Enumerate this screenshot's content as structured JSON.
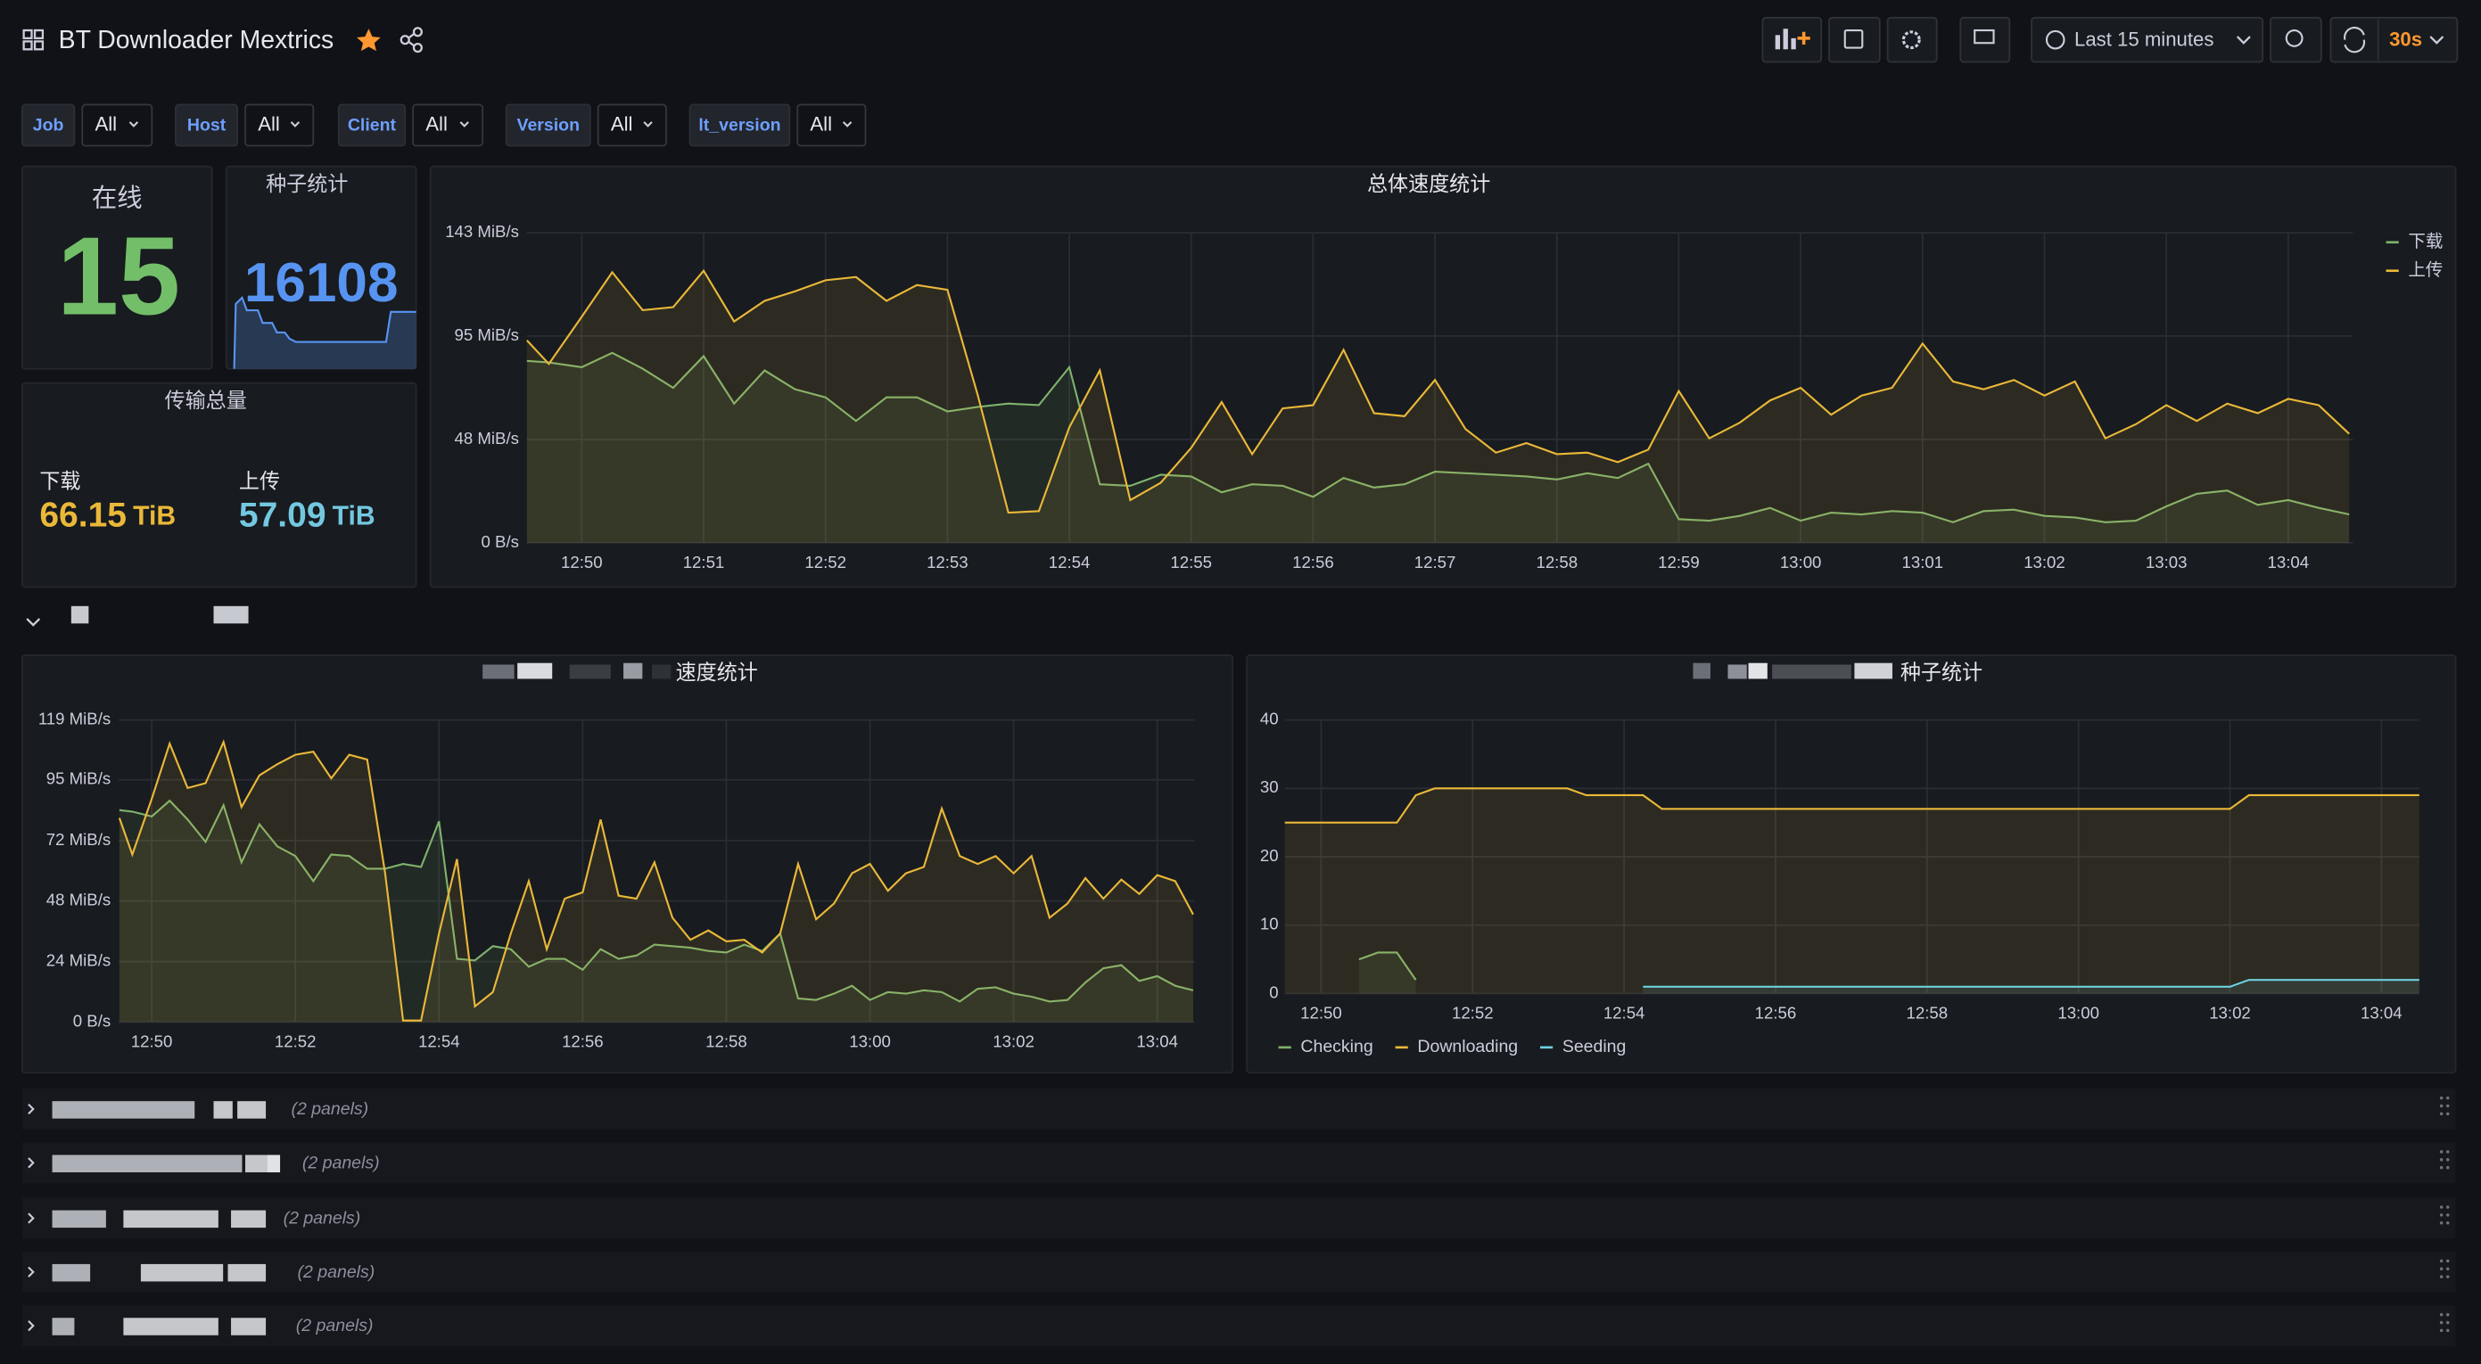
{
  "header": {
    "title": "BT Downloader Mextrics",
    "time_range": "Last 15 minutes",
    "refresh": "30s"
  },
  "variables": [
    {
      "label": "Job",
      "value": "All"
    },
    {
      "label": "Host",
      "value": "All"
    },
    {
      "label": "Client",
      "value": "All"
    },
    {
      "label": "Version",
      "value": "All"
    },
    {
      "label": "lt_version",
      "value": "All"
    }
  ],
  "stats": {
    "online": {
      "title": "在线",
      "value": 15
    },
    "torrents": {
      "title": "种子统计",
      "value": 16108
    },
    "transfer": {
      "title": "传输总量",
      "download": {
        "label": "下载",
        "value": 66.15,
        "unit": "TiB"
      },
      "upload": {
        "label": "上传",
        "value": 57.09,
        "unit": "TiB"
      }
    }
  },
  "chart_data": [
    {
      "type": "line",
      "title": "总体速度统计",
      "grid": true,
      "legend": "right",
      "x": [
        769.55,
        769.73,
        770,
        770.25,
        770.5,
        770.75,
        771,
        771.25,
        771.5,
        771.75,
        772,
        772.25,
        772.5,
        772.75,
        773,
        773.25,
        773.5,
        773.75,
        774,
        774.25,
        774.5,
        774.75,
        775,
        775.25,
        775.5,
        775.75,
        776,
        776.25,
        776.5,
        776.75,
        777,
        777.25,
        777.5,
        777.75,
        778,
        778.25,
        778.5,
        778.75,
        779,
        779.25,
        779.5,
        779.75,
        780,
        780.25,
        780.5,
        780.75,
        781,
        781.25,
        781.5,
        781.75,
        782,
        782.25,
        782.5,
        782.75,
        783,
        783.25,
        783.5,
        783.75,
        784,
        784.25,
        784.5
      ],
      "xlim": [
        769.55,
        784.53
      ],
      "xticks": [
        {
          "value": 770,
          "label": "12:50"
        },
        {
          "value": 771,
          "label": "12:51"
        },
        {
          "value": 772,
          "label": "12:52"
        },
        {
          "value": 773,
          "label": "12:53"
        },
        {
          "value": 774,
          "label": "12:54"
        },
        {
          "value": 775,
          "label": "12:55"
        },
        {
          "value": 776,
          "label": "12:56"
        },
        {
          "value": 777,
          "label": "12:57"
        },
        {
          "value": 778,
          "label": "12:58"
        },
        {
          "value": 779,
          "label": "12:59"
        },
        {
          "value": 780,
          "label": "13:00"
        },
        {
          "value": 781,
          "label": "13:01"
        },
        {
          "value": 782,
          "label": "13:02"
        },
        {
          "value": 783,
          "label": "13:03"
        },
        {
          "value": 784,
          "label": "13:04"
        }
      ],
      "ylim": [
        0,
        143
      ],
      "yticks": [
        {
          "value": 0,
          "label": "0 B/s"
        },
        {
          "value": 47.7,
          "label": "48 MiB/s"
        },
        {
          "value": 95.4,
          "label": "95 MiB/s"
        },
        {
          "value": 143,
          "label": "143 MiB/s"
        }
      ],
      "series": [
        {
          "name": "下载",
          "color": "#7eb26d",
          "values": [
            83.9,
            83.2,
            81.0,
            87.6,
            80.3,
            71.5,
            86.1,
            64.2,
            79.5,
            70.8,
            67.1,
            56.2,
            67.1,
            67.1,
            60.6,
            62.7,
            64.2,
            63.5,
            81.0,
            27.0,
            26.3,
            31.4,
            30.6,
            23.3,
            27.0,
            26.3,
            21.2,
            29.9,
            25.5,
            27.0,
            32.8,
            32.1,
            31.4,
            30.6,
            29.2,
            32.1,
            29.9,
            36.5,
            10.9,
            10.2,
            12.4,
            16.1,
            10.2,
            13.9,
            13.1,
            14.6,
            13.9,
            9.5,
            14.6,
            15.3,
            12.4,
            11.7,
            9.5,
            10.2,
            16.8,
            22.6,
            24.1,
            17.5,
            19.7,
            16.1,
            13.1
          ]
        },
        {
          "name": "上传",
          "color": "#eab839",
          "values": [
            93.4,
            82.5,
            104.3,
            124.8,
            107.3,
            108.7,
            125.5,
            102.1,
            111.6,
            116.0,
            121.1,
            122.6,
            111.6,
            118.9,
            116.7,
            67.9,
            13.9,
            14.6,
            53.3,
            79.5,
            19.7,
            27.7,
            43.8,
            64.9,
            40.9,
            62.0,
            63.5,
            89.0,
            59.8,
            58.4,
            75.1,
            52.5,
            41.6,
            46.0,
            40.9,
            41.6,
            37.2,
            43.0,
            70.0,
            48.2,
            55.4,
            65.7,
            71.5,
            59.1,
            67.9,
            71.5,
            91.9,
            74.4,
            70.8,
            75.1,
            67.9,
            74.4,
            48.2,
            54.7,
            63.5,
            56.2,
            64.2,
            59.8,
            66.4,
            63.5,
            50.3
          ]
        }
      ]
    },
    {
      "type": "line",
      "title": "速度统计",
      "grid": true,
      "x": [
        769.55,
        769.73,
        770,
        770.25,
        770.5,
        770.75,
        771,
        771.25,
        771.5,
        771.75,
        772,
        772.25,
        772.5,
        772.75,
        773,
        773.25,
        773.5,
        773.75,
        774,
        774.25,
        774.5,
        774.75,
        775,
        775.25,
        775.5,
        775.75,
        776,
        776.25,
        776.5,
        776.75,
        777,
        777.25,
        777.5,
        777.75,
        778,
        778.25,
        778.5,
        778.75,
        779,
        779.25,
        779.5,
        779.75,
        780,
        780.25,
        780.5,
        780.75,
        781,
        781.25,
        781.5,
        781.75,
        782,
        782.25,
        782.5,
        782.75,
        783,
        783.25,
        783.5,
        783.75,
        784,
        784.25,
        784.5
      ],
      "xlim": [
        769.54,
        784.52
      ],
      "xticks": [
        {
          "value": 770,
          "label": "12:50"
        },
        {
          "value": 772,
          "label": "12:52"
        },
        {
          "value": 774,
          "label": "12:54"
        },
        {
          "value": 776,
          "label": "12:56"
        },
        {
          "value": 778,
          "label": "12:58"
        },
        {
          "value": 780,
          "label": "13:00"
        },
        {
          "value": 782,
          "label": "13:02"
        },
        {
          "value": 784,
          "label": "13:04"
        }
      ],
      "ylim": [
        0,
        119
      ],
      "yticks": [
        {
          "value": 0,
          "label": "0 B/s"
        },
        {
          "value": 23.8,
          "label": "24 MiB/s"
        },
        {
          "value": 47.7,
          "label": "48 MiB/s"
        },
        {
          "value": 71.5,
          "label": "72 MiB/s"
        },
        {
          "value": 95.4,
          "label": "95 MiB/s"
        },
        {
          "value": 119,
          "label": "119 MiB/s"
        }
      ],
      "series": [
        {
          "color": "#7eb26d",
          "values": [
            83.5,
            82.9,
            81.0,
            87.2,
            79.8,
            71.0,
            85.4,
            62.9,
            77.9,
            69.2,
            65.4,
            55.5,
            66.0,
            65.4,
            60.4,
            60.4,
            62.3,
            61.1,
            79.1,
            24.9,
            24.3,
            29.9,
            28.7,
            21.8,
            24.9,
            24.9,
            20.6,
            28.7,
            24.9,
            26.2,
            30.5,
            29.9,
            29.3,
            28.0,
            27.4,
            30.5,
            28.0,
            34.9,
            9.3,
            8.7,
            11.2,
            14.3,
            8.7,
            11.8,
            11.2,
            12.5,
            11.8,
            8.1,
            13.1,
            13.7,
            11.2,
            10.0,
            8.1,
            8.7,
            15.6,
            21.2,
            22.4,
            16.2,
            18.1,
            14.3,
            12.5
          ]
        },
        {
          "color": "#eab839",
          "values": [
            80.4,
            66.0,
            87.9,
            109.7,
            92.2,
            94.1,
            110.3,
            84.7,
            97.2,
            101.6,
            105.3,
            106.5,
            96.0,
            105.3,
            103.4,
            58.6,
            0.6,
            0.6,
            34.9,
            64.2,
            6.2,
            11.8,
            34.9,
            55.5,
            28.7,
            48.6,
            51.1,
            79.8,
            49.8,
            48.6,
            62.9,
            41.1,
            32.4,
            36.1,
            31.8,
            32.4,
            27.4,
            34.9,
            62.3,
            40.5,
            46.7,
            58.6,
            62.3,
            51.7,
            58.6,
            61.1,
            84.1,
            65.4,
            62.3,
            65.4,
            58.6,
            65.4,
            41.1,
            46.7,
            56.7,
            48.6,
            56.1,
            50.5,
            57.9,
            55.5,
            42.4
          ]
        }
      ]
    },
    {
      "type": "line",
      "title": "种子统计",
      "grid": true,
      "legend": "bottom",
      "x": [
        769.52,
        770.5,
        770.75,
        771,
        771.25,
        771.5,
        773.25,
        773.5,
        774,
        774.25,
        774.5,
        782,
        782.25,
        784.5
      ],
      "xlim": [
        769.52,
        784.5
      ],
      "xticks": [
        {
          "value": 770,
          "label": "12:50"
        },
        {
          "value": 772,
          "label": "12:52"
        },
        {
          "value": 774,
          "label": "12:54"
        },
        {
          "value": 776,
          "label": "12:56"
        },
        {
          "value": 778,
          "label": "12:58"
        },
        {
          "value": 780,
          "label": "13:00"
        },
        {
          "value": 782,
          "label": "13:02"
        },
        {
          "value": 784,
          "label": "13:04"
        }
      ],
      "ylim": [
        0,
        40
      ],
      "yticks": [
        0,
        10,
        20,
        30,
        40
      ],
      "series": [
        {
          "name": "Checking",
          "color": "#7eb26d",
          "values": [
            null,
            5,
            6,
            6,
            2,
            null,
            null,
            null,
            null,
            null,
            null,
            null,
            null,
            null
          ]
        },
        {
          "name": "Downloading",
          "color": "#eab839",
          "values": [
            25,
            25,
            25,
            25,
            29,
            30,
            30,
            29,
            29,
            29,
            27,
            27,
            29,
            29
          ]
        },
        {
          "name": "Seeding",
          "color": "#6ed0e0",
          "values": [
            null,
            null,
            null,
            null,
            null,
            null,
            null,
            null,
            null,
            1,
            1,
            1,
            2,
            2
          ]
        }
      ]
    }
  ],
  "rows": [
    {
      "note": "(2 panels)"
    },
    {
      "note": "(2 panels)"
    },
    {
      "note": "(2 panels)"
    },
    {
      "note": "(2 panels)"
    },
    {
      "note": "(2 panels)"
    }
  ]
}
